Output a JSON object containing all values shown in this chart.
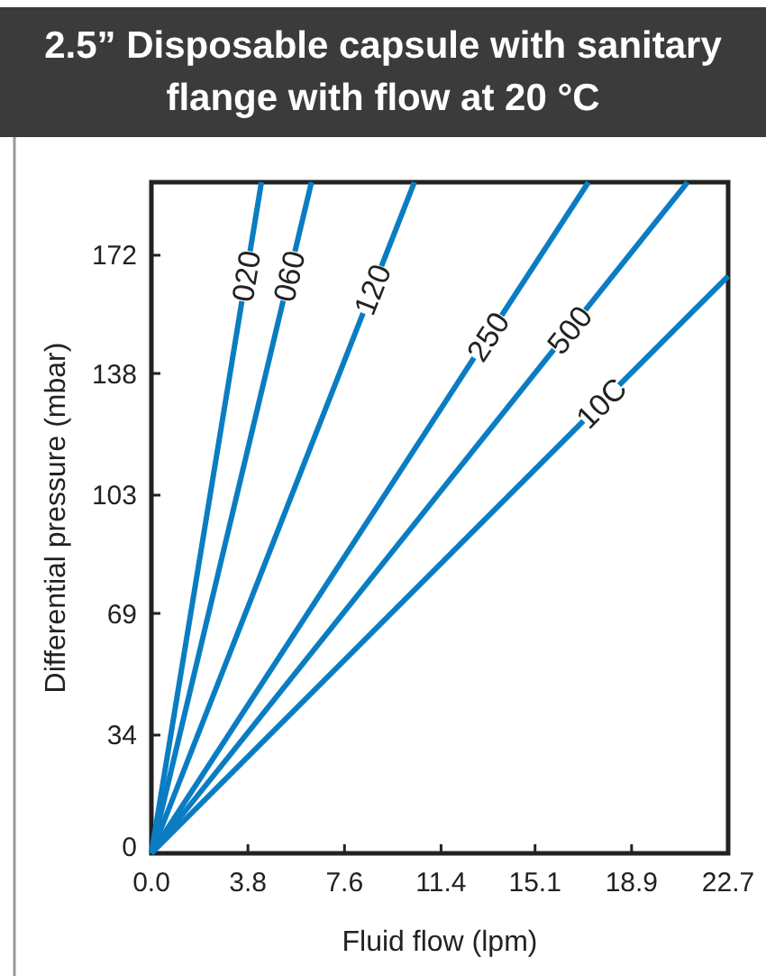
{
  "chart_data": {
    "type": "line",
    "title": "2.5” Disposable capsule with sanitary flange with flow at 20 °C",
    "xlabel": "Fluid flow (lpm)",
    "ylabel": "Differential pressure (mbar)",
    "xlim": [
      0,
      22.7
    ],
    "ylim": [
      0,
      193
    ],
    "xticks": [
      {
        "value": 0,
        "label": "0.0"
      },
      3.8,
      7.6,
      11.4,
      15.1,
      18.9,
      22.7
    ],
    "yticks": [
      0,
      34,
      69,
      103,
      138,
      172
    ],
    "grid": false,
    "legend": false,
    "marker": "none",
    "line_style": "solid",
    "series": [
      {
        "name": "020",
        "color": "#0a7dc2",
        "x": [
          0,
          4.33
        ],
        "values": [
          0,
          193
        ]
      },
      {
        "name": "060",
        "color": "#0a7dc2",
        "x": [
          0,
          6.3
        ],
        "values": [
          0,
          193
        ]
      },
      {
        "name": "120",
        "color": "#0a7dc2",
        "x": [
          0,
          10.35
        ],
        "values": [
          0,
          193
        ]
      },
      {
        "name": "250",
        "color": "#0a7dc2",
        "x": [
          0,
          17.2
        ],
        "values": [
          0,
          193
        ]
      },
      {
        "name": "500",
        "color": "#0a7dc2",
        "x": [
          0,
          21.1
        ],
        "values": [
          0,
          193
        ]
      },
      {
        "name": "10C",
        "color": "#0a7dc2",
        "x": [
          0,
          22.7
        ],
        "values": [
          0,
          166
        ]
      }
    ]
  }
}
